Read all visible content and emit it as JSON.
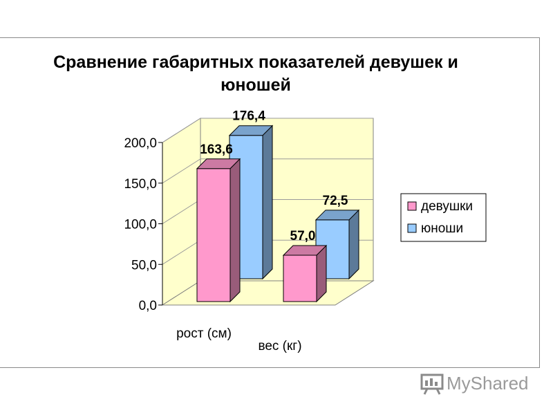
{
  "chart_data": {
    "type": "bar",
    "title": "Сравнение габаритных показателей девушек и юношей",
    "title_lines": [
      "Сравнение габаритных показателей девушек и",
      "юношей"
    ],
    "categories": [
      "рост (см)",
      "вес (кг)"
    ],
    "series": [
      {
        "name": "девушки",
        "values": [
          163.6,
          57.0
        ],
        "labels": [
          "163,6",
          "57,0"
        ],
        "color": "#ff99cc"
      },
      {
        "name": "юноши",
        "values": [
          176.4,
          72.5
        ],
        "labels": [
          "176,4",
          "72,5"
        ],
        "color": "#99ccff"
      }
    ],
    "ylim": [
      0,
      200
    ],
    "ticks": [
      {
        "value": 0,
        "label": "0,0"
      },
      {
        "value": 50,
        "label": "50,0"
      },
      {
        "value": 100,
        "label": "100,0"
      },
      {
        "value": 150,
        "label": "150,0"
      },
      {
        "value": 200,
        "label": "200,0"
      }
    ],
    "grid": true,
    "style": "3d-clustered-column",
    "legend_position": "right",
    "wall_color": "#ffffcc",
    "floor_color": "#ffffcc"
  },
  "watermark": {
    "text": "MyShared",
    "icon": "presentation-board-icon"
  }
}
